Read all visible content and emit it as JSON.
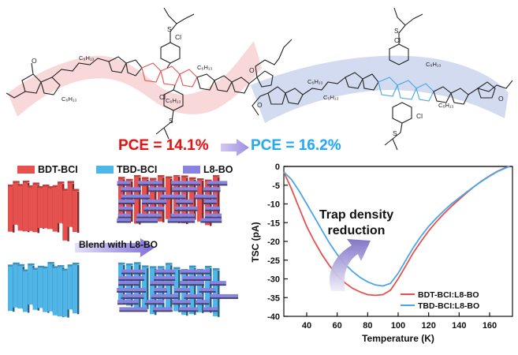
{
  "pce": {
    "left_value": "PCE = 14.1%",
    "right_value": "PCE = 16.2%"
  },
  "structure_labels": {
    "c6h13": "C₆H₁₃",
    "cl": "Cl",
    "s": "S",
    "o": "O"
  },
  "morphology": {
    "legend": [
      {
        "label": "BDT-BCI",
        "color": "#e8504e"
      },
      {
        "label": "TBD-BCI",
        "color": "#4fb6ea"
      },
      {
        "label": "L8-BO",
        "color": "#8883e0"
      }
    ],
    "blend_label": "Blend with L8-BO"
  },
  "chart_data": {
    "type": "line",
    "xlabel": "Temperature (K)",
    "ylabel": "TSC (pA)",
    "xlim": [
      25,
      175
    ],
    "ylim": [
      -40,
      0
    ],
    "xticks": [
      40,
      60,
      80,
      100,
      120,
      140,
      160
    ],
    "yticks": [
      0,
      -5,
      -10,
      -15,
      -20,
      -25,
      -30,
      -35,
      -40
    ],
    "annotation": "Trap density reduction",
    "legend_position": "bottom-right",
    "series": [
      {
        "name": "BDT-BCI:L8-BO",
        "color": "#e8504e",
        "x": [
          25,
          30,
          35,
          40,
          45,
          50,
          55,
          60,
          65,
          70,
          75,
          80,
          85,
          90,
          95,
          100,
          105,
          110,
          115,
          120,
          125,
          130,
          135,
          140,
          145,
          150,
          155,
          160,
          165,
          170,
          173
        ],
        "y": [
          -1.5,
          -6,
          -11,
          -16,
          -20,
          -23.5,
          -26.5,
          -29,
          -31,
          -32.5,
          -33.5,
          -34.2,
          -34.4,
          -34.2,
          -33,
          -30,
          -26.5,
          -23,
          -20,
          -17.2,
          -14.8,
          -12.6,
          -10.6,
          -8.8,
          -7,
          -5.3,
          -3.8,
          -2.5,
          -1.3,
          -0.4,
          0
        ]
      },
      {
        "name": "TBD-BCI:L8-BO",
        "color": "#4aa5ea",
        "x": [
          25,
          30,
          35,
          40,
          45,
          50,
          55,
          60,
          65,
          70,
          75,
          80,
          85,
          90,
          95,
          100,
          105,
          110,
          115,
          120,
          125,
          130,
          135,
          140,
          145,
          150,
          155,
          160,
          165,
          170,
          173
        ],
        "y": [
          -1.5,
          -3.5,
          -6.5,
          -10,
          -13.5,
          -17,
          -20.5,
          -23.5,
          -26,
          -28,
          -29.6,
          -30.8,
          -31.6,
          -31.9,
          -31.2,
          -28.5,
          -25,
          -21.6,
          -18.6,
          -16,
          -13.8,
          -11.8,
          -10,
          -8.4,
          -6.8,
          -5.3,
          -3.9,
          -2.6,
          -1.4,
          -0.5,
          0
        ]
      }
    ]
  }
}
